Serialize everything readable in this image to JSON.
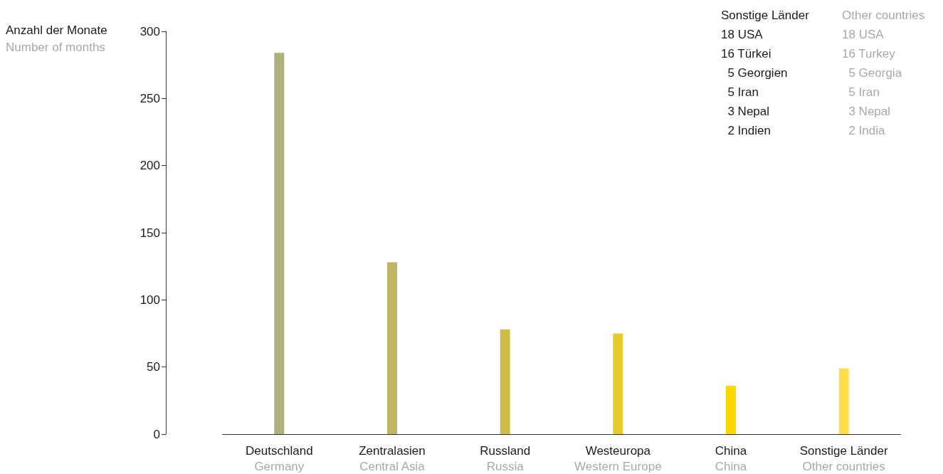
{
  "chart_data": {
    "type": "bar",
    "ylabel": "Anzahl der Monate\nNumber of months",
    "categories": [
      "Deutschland\nGermany",
      "Zentralasien\nCentral Asia",
      "Russland\nRussia",
      "Westeuropa\nWestern Europe",
      "China\nChina",
      "Sonstige Länder\nOther countries"
    ],
    "values": [
      284,
      128,
      78,
      75,
      36,
      49
    ],
    "colors": [
      "#b0b07a",
      "#c0b465",
      "#cfbd45",
      "#e6cb2c",
      "#fad800",
      "#ffdd4f"
    ],
    "ylim": [
      0,
      300
    ],
    "yticks": [
      0,
      50,
      100,
      150,
      200,
      250,
      300
    ],
    "grid": false,
    "annotations": [
      "Sonstige Länder\n18 USA\n16 Türkei\n  5 Georgien\n  5 Iran\n  3 Nepal\n  2 Indien",
      "Other countries\n18 USA\n16 Turkey\n  5 Georgia\n  5 Iran\n  3 Nepal\n  2 India"
    ]
  }
}
